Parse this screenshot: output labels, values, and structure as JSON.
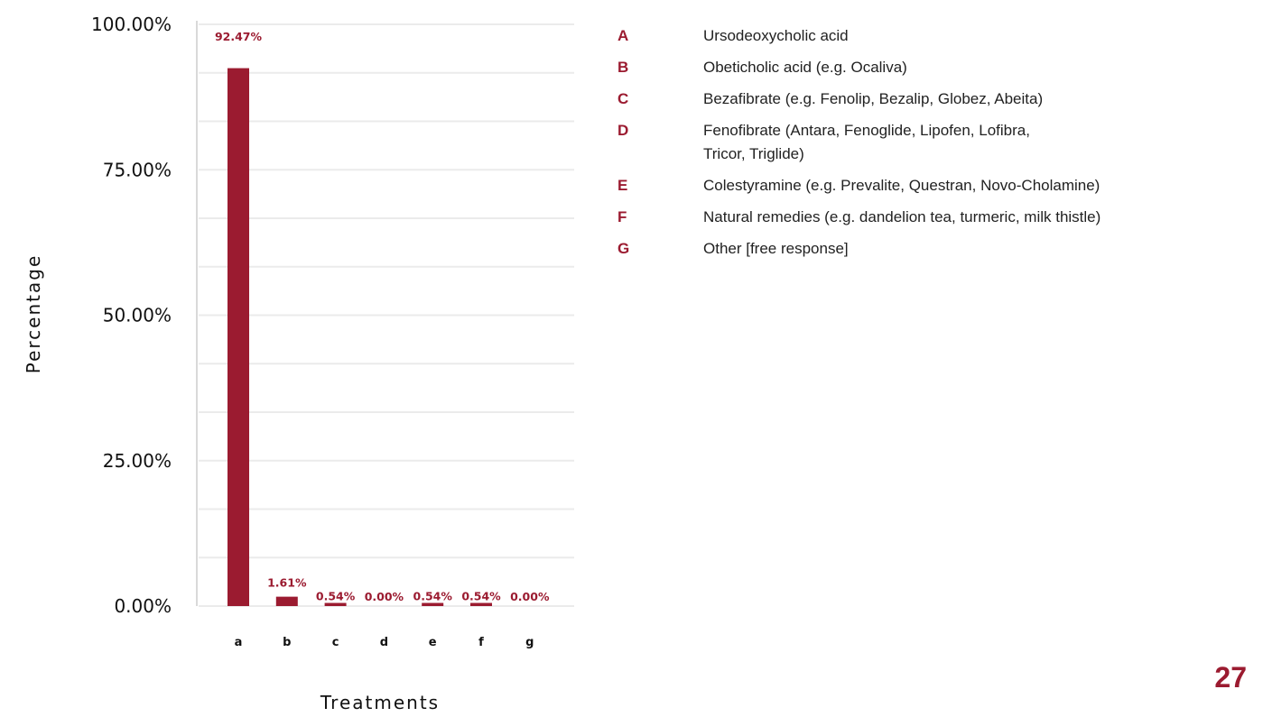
{
  "chart_data": {
    "type": "bar",
    "categories": [
      "a",
      "b",
      "c",
      "d",
      "e",
      "f",
      "g"
    ],
    "values": [
      92.47,
      1.61,
      0.54,
      0.0,
      0.54,
      0.54,
      0.0
    ],
    "data_labels": [
      "92.47%",
      "1.61%",
      "0.54%",
      "0.00%",
      "0.54%",
      "0.54%",
      "0.00%"
    ],
    "xlabel": "Treatments",
    "ylabel": "Percentage",
    "ylim": [
      0,
      100
    ],
    "yticks": [
      "0.00%",
      "25.00%",
      "50.00%",
      "75.00%",
      "100.00%"
    ],
    "ytick_values": [
      0,
      25,
      50,
      75,
      100
    ],
    "minor_gridlines": [
      8.33,
      16.67,
      33.33,
      41.67,
      58.33,
      66.67,
      83.33,
      91.67
    ],
    "grid": true,
    "bar_color": "#9b1b30"
  },
  "legend": {
    "items": [
      {
        "letter": "A",
        "text": "Ursodeoxycholic acid"
      },
      {
        "letter": "B",
        "text": "Obeticholic acid (e.g. Ocaliva)"
      },
      {
        "letter": "C",
        "text": "Bezafibrate (e.g. Fenolip, Bezalip, Globez, Abeita)"
      },
      {
        "letter": "D",
        "text": "Fenofibrate (Antara, Fenoglide, Lipofen, Lofibra, Tricor, Triglide)"
      },
      {
        "letter": "E",
        "text": "Colestyramine (e.g. Prevalite, Questran, Novo-Cholamine)"
      },
      {
        "letter": "F",
        "text": "Natural remedies (e.g. dandelion tea, turmeric, milk thistle)"
      },
      {
        "letter": "G",
        "text": "Other [free response]"
      }
    ]
  },
  "page_number": "27"
}
